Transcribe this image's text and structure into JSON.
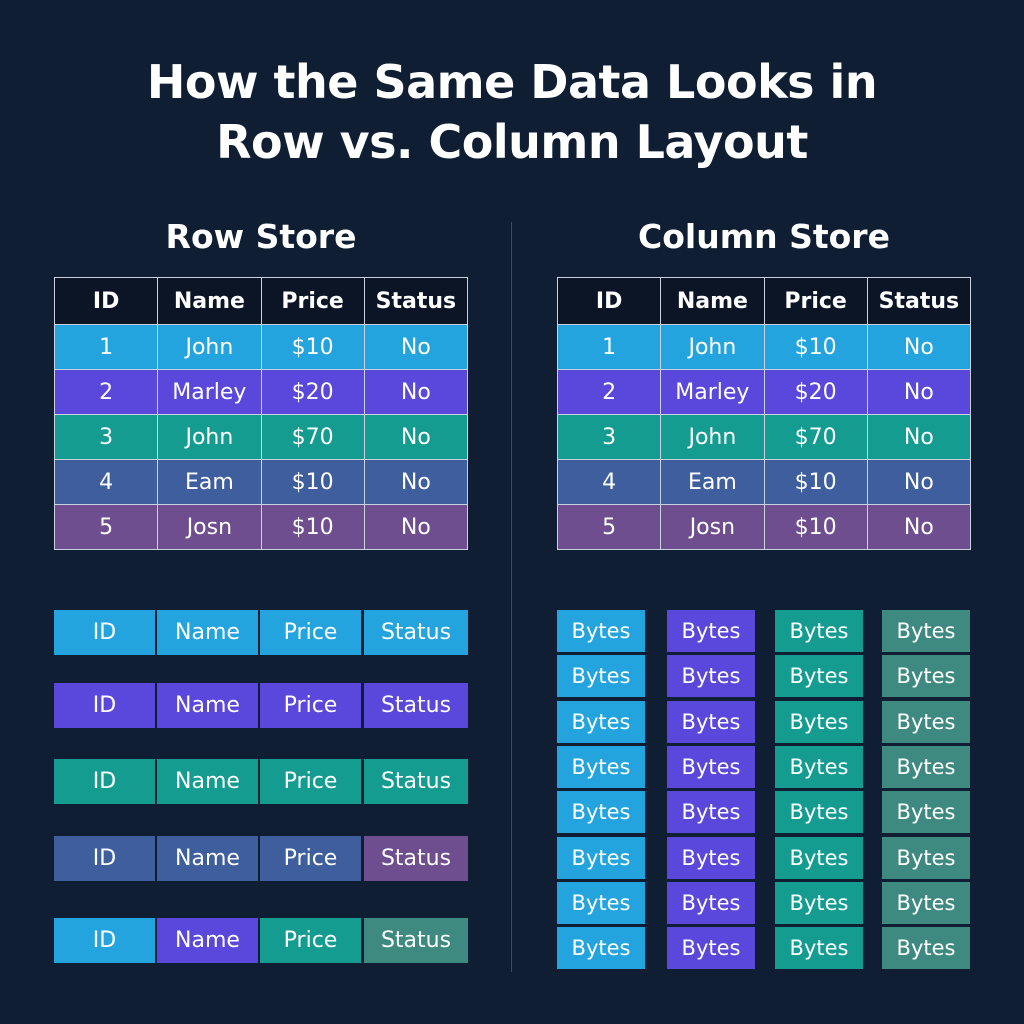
{
  "title": {
    "line1": "How the Same Data Looks in",
    "line2": "Row vs. Column Layout"
  },
  "row_store": {
    "heading": "Row Store",
    "headers": [
      "ID",
      "Name",
      "Price",
      "Status"
    ],
    "rows": [
      [
        "1",
        "John",
        "$10",
        "No"
      ],
      [
        "2",
        "Marley",
        "$20",
        "No"
      ],
      [
        "3",
        "John",
        "$70",
        "No"
      ],
      [
        "4",
        "Eam",
        "$10",
        "No"
      ],
      [
        "5",
        "Josn",
        "$10",
        "No"
      ]
    ],
    "blocks": [
      {
        "labels": [
          "ID",
          "Name",
          "Price",
          "Status"
        ],
        "colors": [
          "sky",
          "sky",
          "sky",
          "sky"
        ]
      },
      {
        "labels": [
          "ID",
          "Name",
          "Price",
          "Status"
        ],
        "colors": [
          "violet",
          "violet",
          "violet",
          "violet"
        ]
      },
      {
        "labels": [
          "ID",
          "Name",
          "Price",
          "Status"
        ],
        "colors": [
          "teal",
          "teal",
          "teal",
          "teal"
        ]
      },
      {
        "labels": [
          "ID",
          "Name",
          "Price",
          "Status"
        ],
        "colors": [
          "slate",
          "slate",
          "slate",
          "plum"
        ]
      },
      {
        "labels": [
          "ID",
          "Name",
          "Price",
          "Status"
        ],
        "colors": [
          "sky",
          "violet",
          "teal",
          "seagreen"
        ]
      }
    ]
  },
  "column_store": {
    "heading": "Column Store",
    "headers": [
      "ID",
      "Name",
      "Price",
      "Status"
    ],
    "rows": [
      [
        "1",
        "John",
        "$10",
        "No"
      ],
      [
        "2",
        "Marley",
        "$20",
        "No"
      ],
      [
        "3",
        "John",
        "$70",
        "No"
      ],
      [
        "4",
        "Eam",
        "$10",
        "No"
      ],
      [
        "5",
        "Josn",
        "$10",
        "No"
      ]
    ],
    "block_label": "Bytes",
    "block_columns": [
      {
        "color": "sky",
        "count": 8
      },
      {
        "color": "violet",
        "count": 8
      },
      {
        "color": "teal",
        "count": 8
      },
      {
        "color": "seagreen",
        "count": 8
      }
    ]
  },
  "row_colors": [
    "sky",
    "violet",
    "teal",
    "slate",
    "plum"
  ],
  "palette": {
    "background": "#0f1e33",
    "sky": "#24a4de",
    "violet": "#5948db",
    "teal": "#159c90",
    "slate": "#3e5e9e",
    "plum": "#6e4e8f",
    "seagreen": "#3e8a80"
  }
}
